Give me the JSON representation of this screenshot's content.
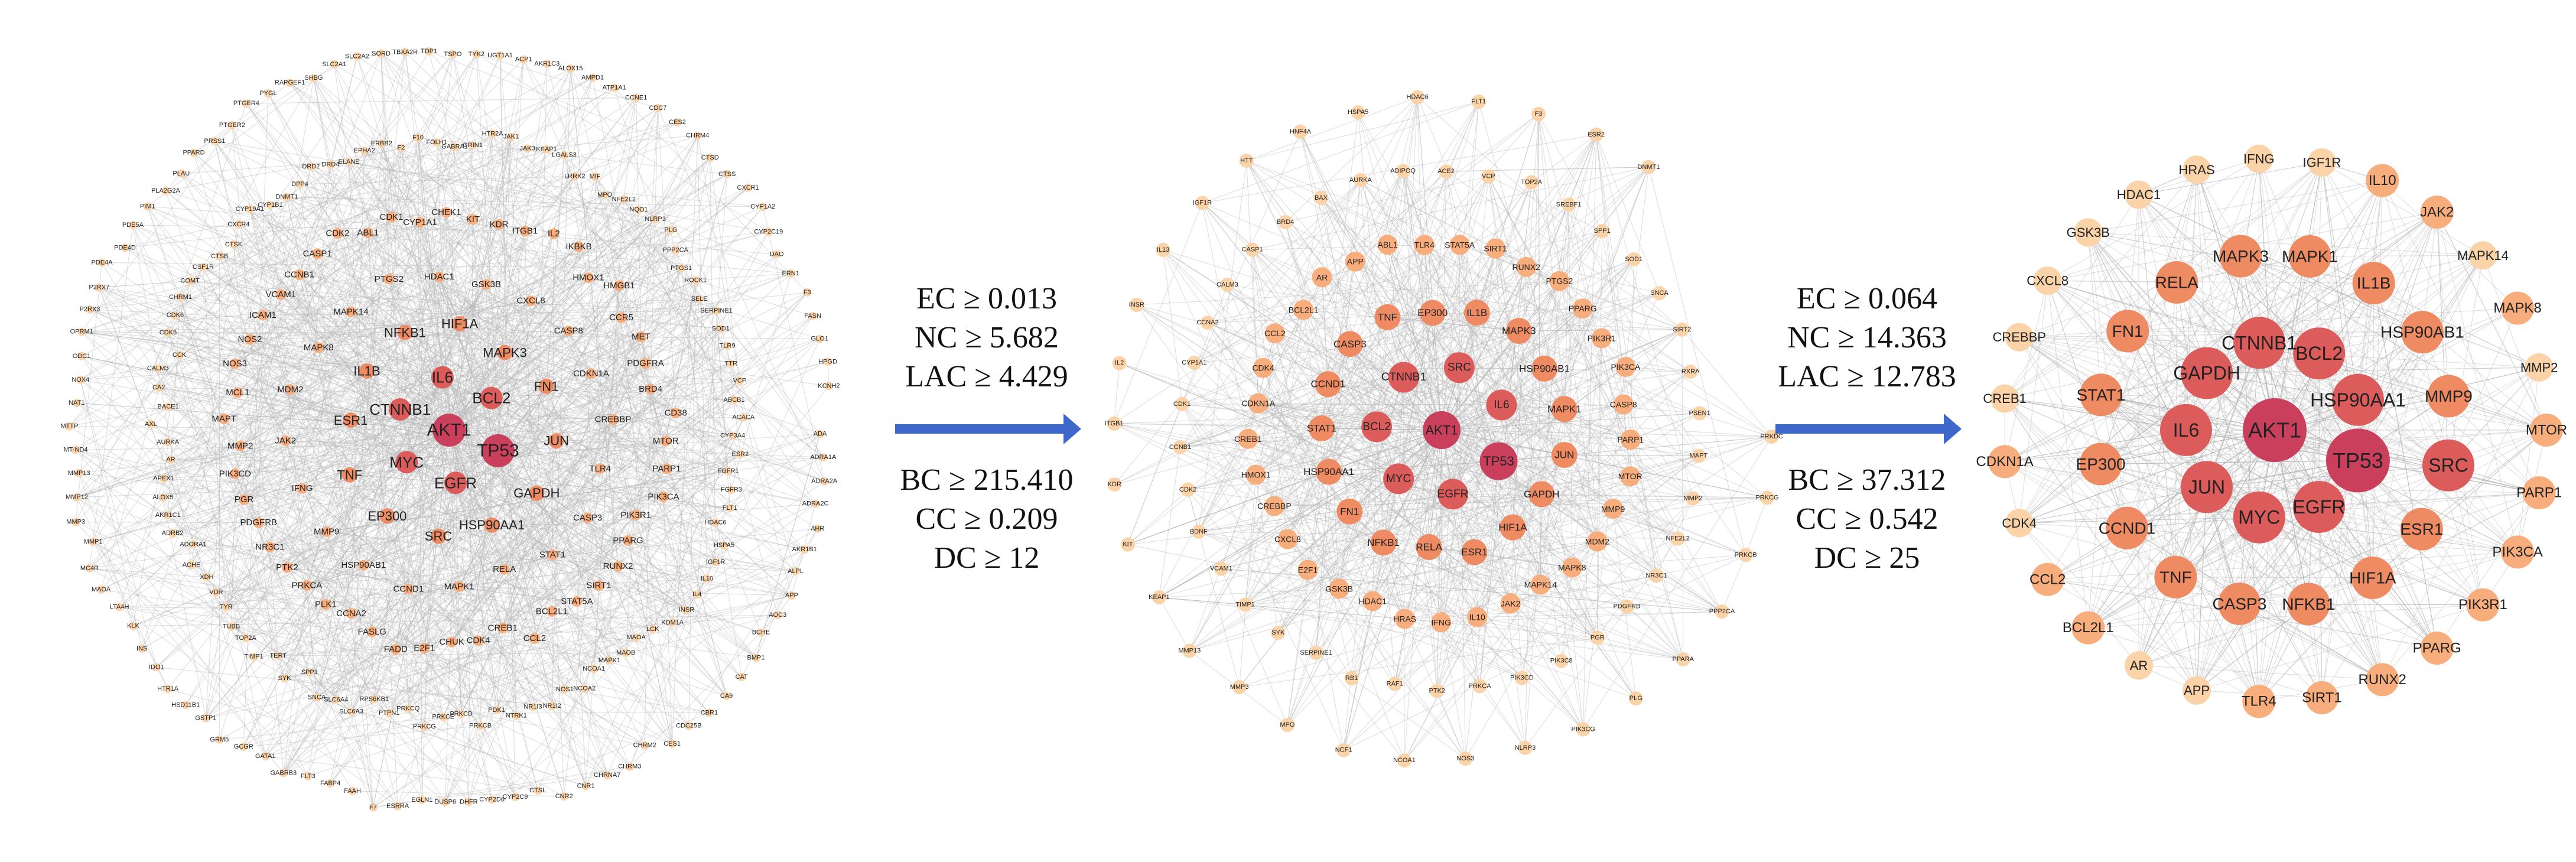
{
  "colors": {
    "edge": "#b9b9b9",
    "arrow": "#3d67c9",
    "node_scale": [
      "#fbd3a9",
      "#f8ad7c",
      "#ee8b63",
      "#dc5c5c",
      "#c93f5c"
    ]
  },
  "stage1": {
    "criteria": [
      "EC ≥ 0.013",
      "NC ≥ 5.682",
      "LAC ≥ 4.429",
      "BC ≥ 215.410",
      "CC ≥ 0.209",
      "DC ≥ 12"
    ]
  },
  "stage2": {
    "criteria": [
      "EC ≥ 0.064",
      "NC ≥ 14.363",
      "LAC ≥ 12.783",
      "BC ≥ 37.312",
      "CC ≥ 0.542",
      "DC ≥ 25"
    ]
  },
  "network1": {
    "core": [
      {
        "label": "AKT1",
        "rank": 5
      },
      {
        "label": "TP53",
        "rank": 5
      },
      {
        "label": "EGFR",
        "rank": 4
      },
      {
        "label": "MYC",
        "rank": 4
      },
      {
        "label": "CTNNB1",
        "rank": 4
      },
      {
        "label": "IL6",
        "rank": 4
      },
      {
        "label": "BCL2",
        "rank": 4
      },
      {
        "label": "JUN",
        "rank": 3
      },
      {
        "label": "GAPDH",
        "rank": 3
      },
      {
        "label": "HSP90AA1",
        "rank": 3
      },
      {
        "label": "SRC",
        "rank": 3
      },
      {
        "label": "EP300",
        "rank": 3
      },
      {
        "label": "TNF",
        "rank": 3
      },
      {
        "label": "ESR1",
        "rank": 3
      },
      {
        "label": "IL1B",
        "rank": 3
      },
      {
        "label": "NFKB1",
        "rank": 3
      },
      {
        "label": "HIF1A",
        "rank": 3
      },
      {
        "label": "MAPK3",
        "rank": 3
      },
      {
        "label": "FN1",
        "rank": 3
      },
      {
        "label": "TLR4",
        "rank": 2
      },
      {
        "label": "CASP3",
        "rank": 2
      },
      {
        "label": "STAT1",
        "rank": 2
      },
      {
        "label": "RELA",
        "rank": 2
      },
      {
        "label": "MAPK1",
        "rank": 2
      },
      {
        "label": "CCND1",
        "rank": 2
      },
      {
        "label": "HSP90AB1",
        "rank": 2
      },
      {
        "label": "MMP9",
        "rank": 2
      },
      {
        "label": "IFNG",
        "rank": 2
      },
      {
        "label": "JAK2",
        "rank": 2
      },
      {
        "label": "MDM2",
        "rank": 2
      },
      {
        "label": "MAPK8",
        "rank": 2
      },
      {
        "label": "MAPK14",
        "rank": 2
      },
      {
        "label": "PTGS2",
        "rank": 2
      },
      {
        "label": "HDAC1",
        "rank": 2
      },
      {
        "label": "GSK3B",
        "rank": 2
      },
      {
        "label": "CXCL8",
        "rank": 2
      },
      {
        "label": "CASP8",
        "rank": 2
      },
      {
        "label": "CDKN1A",
        "rank": 2
      },
      {
        "label": "CREBBP",
        "rank": 2
      }
    ],
    "mid": [
      "MTOR",
      "PARP1",
      "PIK3CA",
      "PIK3R1",
      "PPARG",
      "RUNX2",
      "SIRT1",
      "STAT5A",
      "BCL2L1",
      "CCL2",
      "CREB1",
      "CDK4",
      "CHUK",
      "E2F1",
      "FADD",
      "FASLG",
      "CCNA2",
      "PLK1",
      "PRKCA",
      "PTK2",
      "NR3C1",
      "PDGFRB",
      "PGR",
      "PIK3CD",
      "MMP2",
      "MAPT",
      "MCL1",
      "NOS3",
      "NOS2",
      "ICAM1",
      "VCAM1",
      "CCNB1",
      "CASP1",
      "CDK2",
      "ABL1",
      "CDK1",
      "CYP1A1",
      "CHEK1",
      "KIT",
      "KDR",
      "ITGB1",
      "IL2",
      "IKBKB",
      "HMOX1",
      "HMGB1",
      "CCR5",
      "MET",
      "PDGFRA",
      "BRD4",
      "CD38"
    ],
    "outer": [
      "CYP3A4",
      "ESR2",
      "FGFR1",
      "FGFR3",
      "FLT1",
      "HDAC6",
      "HSPA5",
      "IGF1R",
      "IL10",
      "IL4",
      "INSR",
      "KDM1A",
      "LCK",
      "MAOA",
      "MAOB",
      "MAPK1",
      "NCOA1",
      "NCOA2",
      "NOS1",
      "NR1I2",
      "NR1I3",
      "NTRK1",
      "PDK1",
      "PRKCB",
      "PRKCD",
      "PRKCE",
      "PRKCG",
      "PRKCQ",
      "PTPN1",
      "RPS6KB1",
      "SLC6A3",
      "SLC6A4",
      "SNCA",
      "SPP1",
      "SYK",
      "TERT",
      "TIMP1",
      "TOP2A",
      "TUBB",
      "TYR",
      "VDR",
      "XDH",
      "ACHE",
      "ADORA1",
      "ADRB2",
      "AKR1C1",
      "ALOX5",
      "APEX1",
      "AR",
      "AURKA",
      "AXL",
      "BACE1",
      "CA2",
      "CALM3",
      "CCK",
      "CDK5",
      "CDK6",
      "CHRM1",
      "COMT",
      "CSF1R",
      "CTSB",
      "CTSK",
      "CXCR4",
      "CYP19A1",
      "CYP1B1",
      "DNMT1",
      "DPP4",
      "DRD2",
      "DRD4",
      "ELANE",
      "EPHA2",
      "ERBB2",
      "F2",
      "F10",
      "FOLH1",
      "GABRA1",
      "GRIN1",
      "HTR2A",
      "JAK1",
      "JAK3",
      "KEAP1",
      "LGALS3",
      "LRRK2",
      "MIF",
      "MPO",
      "NFE2L2",
      "NQO1",
      "NLRP3",
      "PLG",
      "PPP2CA",
      "PTGS1",
      "ROCK1",
      "SELE",
      "SERPINE1",
      "SOD1",
      "TLR9",
      "TTR",
      "VCP",
      "ABCB1"
    ],
    "rim": [
      "ACACA",
      "ADA",
      "ADRA1A",
      "ADRA2A",
      "ADRA2C",
      "AHR",
      "AKR1B1",
      "ALPL",
      "APP",
      "AOC3",
      "BCHE",
      "BMP1",
      "CAT",
      "CA9",
      "CBR1",
      "CDC25B",
      "CES1",
      "CHRM2",
      "CHRM3",
      "CHRNA7",
      "CNR1",
      "CNR2",
      "CTSL",
      "CYP2C9",
      "CYP2D6",
      "DHFR",
      "DUSP6",
      "EGLN1",
      "ESRRA",
      "F7",
      "FAAH",
      "FABP4",
      "FLT3",
      "GABRB3",
      "GATA1",
      "GCGR",
      "GRM5",
      "GSTP1",
      "HSD11B1",
      "HTR1A",
      "IDO1",
      "INS",
      "KLK",
      "LTA4H",
      "MAOA",
      "MC4R",
      "MMP1",
      "MMP3",
      "MMP12",
      "MMP13",
      "MT-ND4",
      "MTTP",
      "NAT1",
      "NOX4",
      "ODC1",
      "OPRM1",
      "P2RX3",
      "P2RX7",
      "PDE4A",
      "PDE4D",
      "PDE5A",
      "PIM1",
      "PLA2G2A",
      "PLAU",
      "PPARD",
      "PRSS1",
      "PTGER2",
      "PTGER4",
      "PYGL",
      "RAPGEF1",
      "SHBG",
      "SLC2A1",
      "SLC2A2",
      "SORD",
      "TBXA2R",
      "TDP1",
      "TSPO",
      "TYK2",
      "UGT1A1",
      "ACP1",
      "AKR1C3",
      "ALOX15",
      "AMPD1",
      "ATP1A1",
      "CCNE1",
      "CDC7",
      "CES2",
      "CHRM4",
      "CTSD",
      "CTSS",
      "CXCR1",
      "CYP1A2",
      "CYP2C19",
      "DAO",
      "ERN1",
      "F3",
      "FASN",
      "GLO1",
      "HPGD",
      "KCNH2"
    ]
  },
  "network2": {
    "labels": [
      {
        "label": "AKT1",
        "rank": 5
      },
      {
        "label": "TP53",
        "rank": 5
      },
      {
        "label": "EGFR",
        "rank": 4
      },
      {
        "label": "MYC",
        "rank": 4
      },
      {
        "label": "BCL2",
        "rank": 4
      },
      {
        "label": "CTNNB1",
        "rank": 4
      },
      {
        "label": "SRC",
        "rank": 4
      },
      {
        "label": "IL6",
        "rank": 4
      },
      {
        "label": "JUN",
        "rank": 3
      },
      {
        "label": "GAPDH",
        "rank": 3
      },
      {
        "label": "HIF1A",
        "rank": 3
      },
      {
        "label": "ESR1",
        "rank": 3
      },
      {
        "label": "RELA",
        "rank": 3
      },
      {
        "label": "NFKB1",
        "rank": 3
      },
      {
        "label": "FN1",
        "rank": 3
      },
      {
        "label": "HSP90AA1",
        "rank": 3
      },
      {
        "label": "STAT1",
        "rank": 3
      },
      {
        "label": "CCND1",
        "rank": 3
      },
      {
        "label": "CASP3",
        "rank": 3
      },
      {
        "label": "TNF",
        "rank": 3
      },
      {
        "label": "EP300",
        "rank": 3
      },
      {
        "label": "IL1B",
        "rank": 3
      },
      {
        "label": "MAPK3",
        "rank": 3
      },
      {
        "label": "HSP90AB1",
        "rank": 3
      },
      {
        "label": "MAPK1",
        "rank": 3
      },
      {
        "label": "PARP1",
        "rank": 2
      },
      {
        "label": "MTOR",
        "rank": 2
      },
      {
        "label": "MMP9",
        "rank": 2
      },
      {
        "label": "MDM2",
        "rank": 2
      },
      {
        "label": "MAPK8",
        "rank": 2
      },
      {
        "label": "MAPK14",
        "rank": 2
      },
      {
        "label": "JAK2",
        "rank": 2
      },
      {
        "label": "IL10",
        "rank": 2
      },
      {
        "label": "IFNG",
        "rank": 2
      },
      {
        "label": "HRAS",
        "rank": 2
      },
      {
        "label": "HDAC1",
        "rank": 2
      },
      {
        "label": "GSK3B",
        "rank": 2
      },
      {
        "label": "E2F1",
        "rank": 2
      },
      {
        "label": "CXCL8",
        "rank": 2
      },
      {
        "label": "CREBBP",
        "rank": 2
      },
      {
        "label": "HMOX1",
        "rank": 2
      },
      {
        "label": "CREB1",
        "rank": 2
      },
      {
        "label": "CDKN1A",
        "rank": 2
      },
      {
        "label": "CDK4",
        "rank": 2
      },
      {
        "label": "CCL2",
        "rank": 2
      },
      {
        "label": "BCL2L1",
        "rank": 2
      },
      {
        "label": "AR",
        "rank": 2
      },
      {
        "label": "APP",
        "rank": 2
      },
      {
        "label": "ABL1",
        "rank": 2
      },
      {
        "label": "TLR4",
        "rank": 2
      },
      {
        "label": "STAT5A",
        "rank": 2
      },
      {
        "label": "SIRT1",
        "rank": 2
      },
      {
        "label": "RUNX2",
        "rank": 2
      },
      {
        "label": "PTGS2",
        "rank": 2
      },
      {
        "label": "PPARG",
        "rank": 2
      },
      {
        "label": "PIK3R1",
        "rank": 2
      },
      {
        "label": "PIK3CA",
        "rank": 2
      },
      {
        "label": "CASP8",
        "rank": 2
      },
      {
        "label": "MAPT",
        "rank": 1
      },
      {
        "label": "MMP2",
        "rank": 1
      },
      {
        "label": "NFE2L2",
        "rank": 1
      },
      {
        "label": "NR3C1",
        "rank": 1
      },
      {
        "label": "PDGFRB",
        "rank": 1
      },
      {
        "label": "PGR",
        "rank": 1
      },
      {
        "label": "PIK3C8",
        "rank": 1
      },
      {
        "label": "PIK3CD",
        "rank": 1
      },
      {
        "label": "PRKCA",
        "rank": 1
      },
      {
        "label": "PTK2",
        "rank": 1
      },
      {
        "label": "RAF1",
        "rank": 1
      },
      {
        "label": "RB1",
        "rank": 1
      },
      {
        "label": "SERPINE1",
        "rank": 1
      },
      {
        "label": "SYK",
        "rank": 1
      },
      {
        "label": "TIMP1",
        "rank": 1
      },
      {
        "label": "VCAM1",
        "rank": 1
      },
      {
        "label": "BDNF",
        "rank": 1
      },
      {
        "label": "CDK2",
        "rank": 1
      },
      {
        "label": "CCNB1",
        "rank": 1
      },
      {
        "label": "CDK1",
        "rank": 1
      },
      {
        "label": "CYP1A1",
        "rank": 1
      },
      {
        "label": "CCNA2",
        "rank": 1
      },
      {
        "label": "CALM3",
        "rank": 1
      },
      {
        "label": "CASP1",
        "rank": 1
      },
      {
        "label": "BRD4",
        "rank": 1
      },
      {
        "label": "BAX",
        "rank": 1
      },
      {
        "label": "AURKA",
        "rank": 1
      },
      {
        "label": "ADIPOQ",
        "rank": 1
      },
      {
        "label": "ACE2",
        "rank": 1
      },
      {
        "label": "VCP",
        "rank": 1
      },
      {
        "label": "TOP2A",
        "rank": 1
      },
      {
        "label": "SREBF1",
        "rank": 1
      },
      {
        "label": "SPP1",
        "rank": 1
      },
      {
        "label": "SOD1",
        "rank": 1
      },
      {
        "label": "SNCA",
        "rank": 1
      },
      {
        "label": "SIRT2",
        "rank": 1
      },
      {
        "label": "RXRA",
        "rank": 1
      },
      {
        "label": "PSEN1",
        "rank": 1
      },
      {
        "label": "PRKDC",
        "rank": 1
      },
      {
        "label": "PRKCG",
        "rank": 1
      },
      {
        "label": "PRKCB",
        "rank": 1
      },
      {
        "label": "PPP2CA",
        "rank": 1
      },
      {
        "label": "PPARA",
        "rank": 1
      },
      {
        "label": "PLG",
        "rank": 1
      },
      {
        "label": "PIK3CG",
        "rank": 1
      },
      {
        "label": "NLRP3",
        "rank": 1
      },
      {
        "label": "NOS3",
        "rank": 1
      },
      {
        "label": "NCOA1",
        "rank": 1
      },
      {
        "label": "NCF1",
        "rank": 1
      },
      {
        "label": "MPO",
        "rank": 1
      },
      {
        "label": "MMP3",
        "rank": 1
      },
      {
        "label": "MMP13",
        "rank": 1
      },
      {
        "label": "KEAP1",
        "rank": 1
      },
      {
        "label": "KIT",
        "rank": 1
      },
      {
        "label": "KDR",
        "rank": 1
      },
      {
        "label": "ITGB1",
        "rank": 1
      },
      {
        "label": "IL2",
        "rank": 1
      },
      {
        "label": "INSR",
        "rank": 1
      },
      {
        "label": "IL13",
        "rank": 1
      },
      {
        "label": "IGF1R",
        "rank": 1
      },
      {
        "label": "HTT",
        "rank": 1
      },
      {
        "label": "HNF4A",
        "rank": 1
      },
      {
        "label": "HSPA5",
        "rank": 1
      },
      {
        "label": "HDAC6",
        "rank": 1
      },
      {
        "label": "FLT1",
        "rank": 1
      },
      {
        "label": "F3",
        "rank": 1
      },
      {
        "label": "ESR2",
        "rank": 1
      },
      {
        "label": "DNMT1",
        "rank": 1
      }
    ]
  },
  "network3": {
    "labels": [
      {
        "label": "AKT1",
        "rank": 5
      },
      {
        "label": "TP53",
        "rank": 5
      },
      {
        "label": "EGFR",
        "rank": 4
      },
      {
        "label": "MYC",
        "rank": 4
      },
      {
        "label": "JUN",
        "rank": 4
      },
      {
        "label": "IL6",
        "rank": 4
      },
      {
        "label": "GAPDH",
        "rank": 4
      },
      {
        "label": "CTNNB1",
        "rank": 4
      },
      {
        "label": "BCL2",
        "rank": 4
      },
      {
        "label": "HSP90AA1",
        "rank": 4
      },
      {
        "label": "SRC",
        "rank": 4
      },
      {
        "label": "ESR1",
        "rank": 3
      },
      {
        "label": "HIF1A",
        "rank": 3
      },
      {
        "label": "NFKB1",
        "rank": 3
      },
      {
        "label": "CASP3",
        "rank": 3
      },
      {
        "label": "TNF",
        "rank": 3
      },
      {
        "label": "CCND1",
        "rank": 3
      },
      {
        "label": "EP300",
        "rank": 3
      },
      {
        "label": "STAT1",
        "rank": 3
      },
      {
        "label": "FN1",
        "rank": 3
      },
      {
        "label": "RELA",
        "rank": 3
      },
      {
        "label": "MAPK3",
        "rank": 3
      },
      {
        "label": "MAPK1",
        "rank": 3
      },
      {
        "label": "IL1B",
        "rank": 3
      },
      {
        "label": "HSP90AB1",
        "rank": 3
      },
      {
        "label": "MMP9",
        "rank": 3
      },
      {
        "label": "MTOR",
        "rank": 2
      },
      {
        "label": "PARP1",
        "rank": 2
      },
      {
        "label": "PIK3CA",
        "rank": 2
      },
      {
        "label": "PIK3R1",
        "rank": 2
      },
      {
        "label": "PPARG",
        "rank": 2
      },
      {
        "label": "RUNX2",
        "rank": 2
      },
      {
        "label": "SIRT1",
        "rank": 2
      },
      {
        "label": "TLR4",
        "rank": 2
      },
      {
        "label": "APP",
        "rank": 1
      },
      {
        "label": "AR",
        "rank": 1
      },
      {
        "label": "BCL2L1",
        "rank": 2
      },
      {
        "label": "CCL2",
        "rank": 2
      },
      {
        "label": "CDK4",
        "rank": 1
      },
      {
        "label": "CDKN1A",
        "rank": 2
      },
      {
        "label": "CREB1",
        "rank": 1
      },
      {
        "label": "CREBBP",
        "rank": 1
      },
      {
        "label": "CXCL8",
        "rank": 1
      },
      {
        "label": "GSK3B",
        "rank": 1
      },
      {
        "label": "HDAC1",
        "rank": 1
      },
      {
        "label": "HRAS",
        "rank": 1
      },
      {
        "label": "IFNG",
        "rank": 1
      },
      {
        "label": "IGF1R",
        "rank": 1
      },
      {
        "label": "IL10",
        "rank": 2
      },
      {
        "label": "JAK2",
        "rank": 2
      },
      {
        "label": "MAPK14",
        "rank": 1
      },
      {
        "label": "MAPK8",
        "rank": 2
      },
      {
        "label": "MMP2",
        "rank": 1
      }
    ]
  }
}
